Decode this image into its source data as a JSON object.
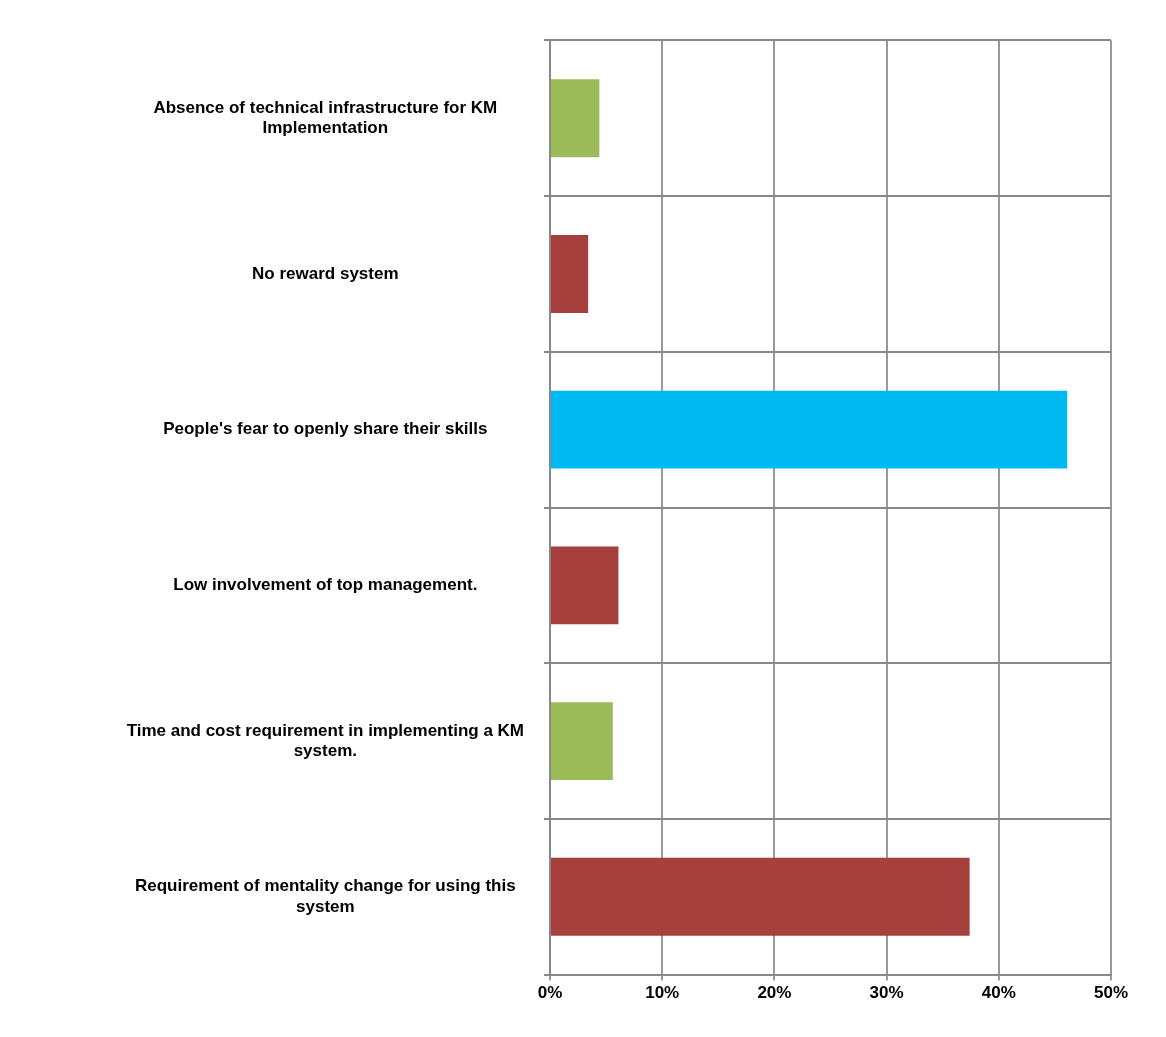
{
  "chart_data": {
    "type": "bar",
    "orientation": "horizontal",
    "categories": [
      "Absence of technical infrastructure for KM Implementation",
      "No reward system",
      "People's fear to openly share their skills",
      "Low involvement of top management.",
      "Time and cost requirement in implementing a KM system.",
      "Requirement of mentality change for using this system"
    ],
    "values": [
      4.4,
      3.4,
      46.1,
      6.1,
      5.6,
      37.4
    ],
    "colors": [
      "#9bbb59",
      "#a5403d",
      "#00b8f2",
      "#a5403d",
      "#9bbb59",
      "#a5403d"
    ],
    "xlim": [
      0,
      50
    ],
    "xticks": [
      {
        "value": 0,
        "label": "0%"
      },
      {
        "value": 10,
        "label": "10%"
      },
      {
        "value": 20,
        "label": "20%"
      },
      {
        "value": 30,
        "label": "30%"
      },
      {
        "value": 40,
        "label": "40%"
      },
      {
        "value": 50,
        "label": "50%"
      }
    ],
    "grid": true,
    "legend": false
  }
}
